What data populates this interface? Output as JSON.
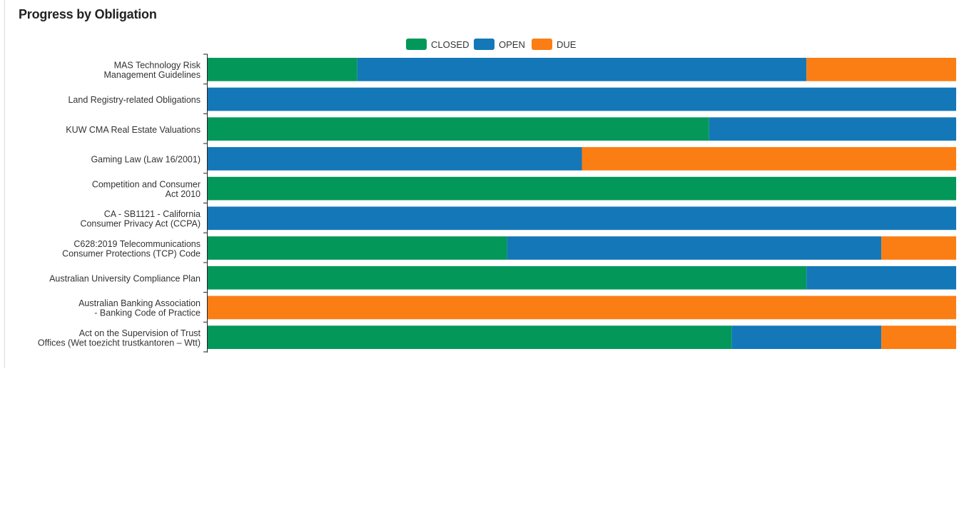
{
  "panel": {
    "title": "Progress by Obligation"
  },
  "colors": {
    "closed": "#03985a",
    "open": "#1478b8",
    "due": "#fb7e14"
  },
  "chart_data": {
    "type": "bar",
    "orientation": "horizontal",
    "stacked": true,
    "normalized": true,
    "title": "",
    "legend_position": "top-center",
    "categories": [
      [
        "MAS Technology Risk",
        "Management Guidelines"
      ],
      [
        "Land Registry-related Obligations"
      ],
      [
        "KUW CMA Real Estate Valuations"
      ],
      [
        "Gaming Law (Law 16/2001)"
      ],
      [
        "Competition and Consumer",
        "Act 2010"
      ],
      [
        "CA - SB1121 - California",
        "Consumer Privacy Act (CCPA)"
      ],
      [
        "C628:2019 Telecommunications",
        "Consumer Protections (TCP) Code"
      ],
      [
        "Australian University Compliance Plan"
      ],
      [
        "Australian Banking Association",
        "- Banking Code of Practice"
      ],
      [
        "Act on the Supervision of Trust",
        "Offices (Wet toezicht trustkantoren – Wtt)"
      ]
    ],
    "series": [
      {
        "name": "CLOSED",
        "color_key": "closed",
        "values": [
          0.2,
          0,
          0.67,
          0,
          1,
          0,
          0.4,
          0.8,
          0,
          0.7
        ]
      },
      {
        "name": "OPEN",
        "color_key": "open",
        "values": [
          0.6,
          1,
          0.33,
          0.5,
          0,
          1,
          0.5,
          0.2,
          0,
          0.2
        ]
      },
      {
        "name": "DUE",
        "color_key": "due",
        "values": [
          0.2,
          0,
          0,
          0.5,
          0,
          0,
          0.1,
          0,
          1,
          0.1
        ]
      }
    ]
  }
}
